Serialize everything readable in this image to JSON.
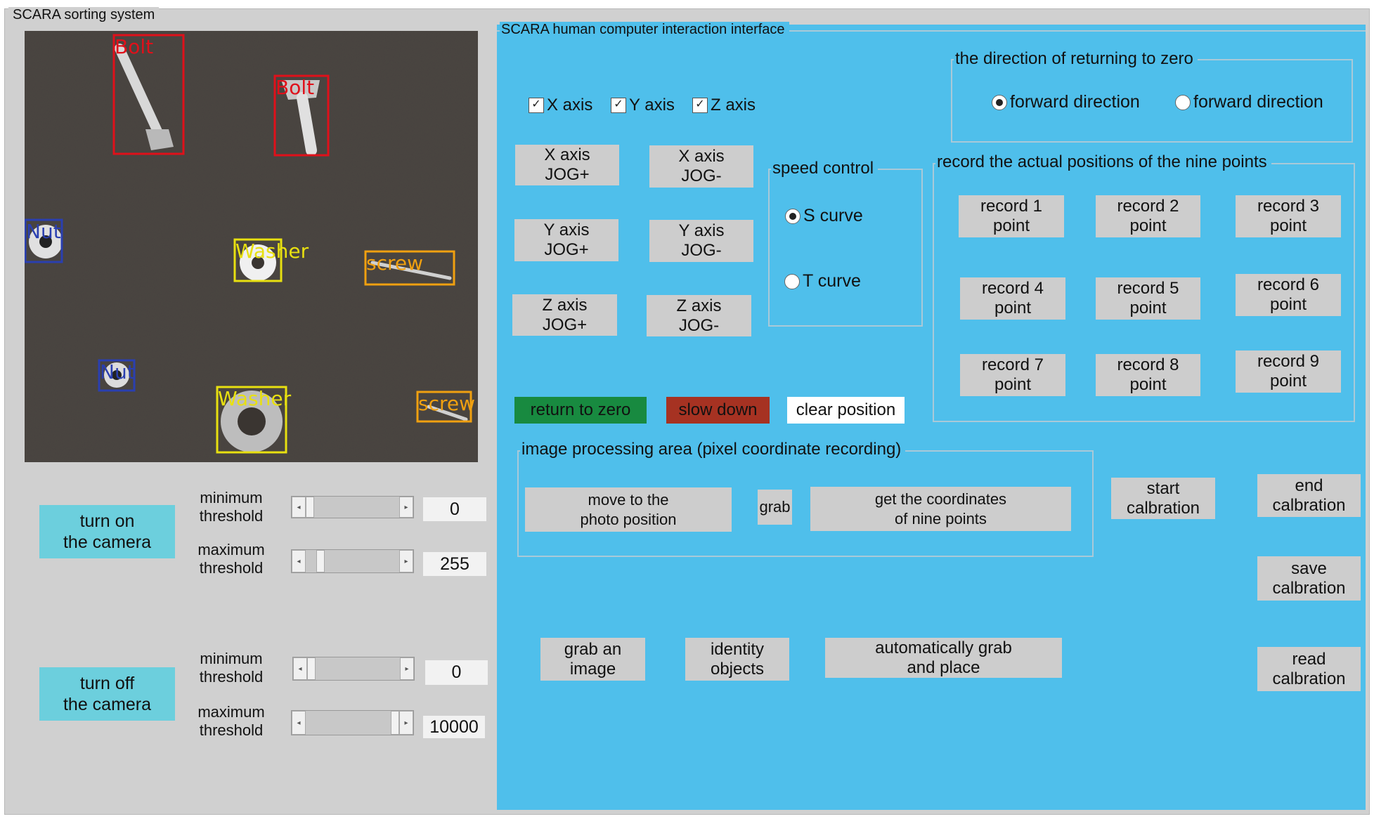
{
  "left_panel": {
    "title": "SCARA sorting system",
    "camera_view": {
      "detections": [
        {
          "label": "Bolt",
          "color": "#e0101a"
        },
        {
          "label": "Bolt",
          "color": "#e0101a"
        },
        {
          "label": "Nut",
          "color": "#2a3fb0"
        },
        {
          "label": "Washer",
          "color": "#e8e010"
        },
        {
          "label": "screw",
          "color": "#f0a010"
        },
        {
          "label": "Nut",
          "color": "#2a3fb0"
        },
        {
          "label": "Washer",
          "color": "#e8e010"
        },
        {
          "label": "screw",
          "color": "#f0a010"
        }
      ]
    },
    "camera_on": {
      "label": "turn on\nthe camera",
      "min_threshold": {
        "label": "minimum\nthreshold",
        "value": "0",
        "level": 0.0
      },
      "max_threshold": {
        "label": "maximum\nthreshold",
        "value": "255",
        "level": 0.12
      }
    },
    "camera_off": {
      "label": "turn off\nthe camera",
      "min_threshold": {
        "label": "minimum\nthreshold",
        "value": "0",
        "level": 0.0
      },
      "max_threshold": {
        "label": "maximum\nthreshold",
        "value": "10000",
        "level": 1.0
      }
    }
  },
  "right_panel": {
    "title": "SCARA human computer interaction interface",
    "axes_checkboxes": [
      {
        "label": "X axis",
        "checked": true
      },
      {
        "label": "Y axis",
        "checked": true
      },
      {
        "label": "Z axis",
        "checked": true
      }
    ],
    "jog_buttons": {
      "x_plus": "X axis\nJOG+",
      "x_minus": "X axis\nJOG-",
      "y_plus": "Y axis\nJOG+",
      "y_minus": "Y axis\nJOG-",
      "z_plus": "Z axis\nJOG+",
      "z_minus": "Z axis\nJOG-"
    },
    "speed_control": {
      "title": "speed control",
      "options": [
        {
          "label": "S curve",
          "selected": true
        },
        {
          "label": "T curve",
          "selected": false
        }
      ]
    },
    "return_to_zero": "return to zero",
    "slow_down": "slow down",
    "clear_position": "clear position",
    "return_direction": {
      "title": "the direction of returning to zero",
      "options": [
        {
          "label": "forward direction",
          "selected": true
        },
        {
          "label": "forward direction",
          "selected": false
        }
      ]
    },
    "record_points": {
      "title": "record the actual positions of the nine points",
      "buttons": [
        "record 1\npoint",
        "record 2\npoint",
        "record 3\npoint",
        "record 4\npoint",
        "record 5\npoint",
        "record 6\npoint",
        "record 7\npoint",
        "record 8\npoint",
        "record 9\npoint"
      ]
    },
    "image_processing": {
      "title": "image processing area (pixel coordinate recording)",
      "move_to_photo": "move to the\nphoto position",
      "grab": "grab",
      "get_coordinates": "get the coordinates\nof nine points"
    },
    "calibration": {
      "start": "start\ncalbration",
      "end": "end\ncalbration",
      "save": "save\ncalbration",
      "read": "read\ncalbration"
    },
    "grab_image": "grab an\nimage",
    "identify_objects": "identity\nobjects",
    "auto_grab_place": "automatically grab\nand place"
  },
  "colors": {
    "panel_blue": "#4fbfeb",
    "button_gray": "#cdcdcd",
    "camera_button": "#6ccfdd",
    "return_zero_green": "#188a40",
    "slow_down_red": "#a63222"
  }
}
